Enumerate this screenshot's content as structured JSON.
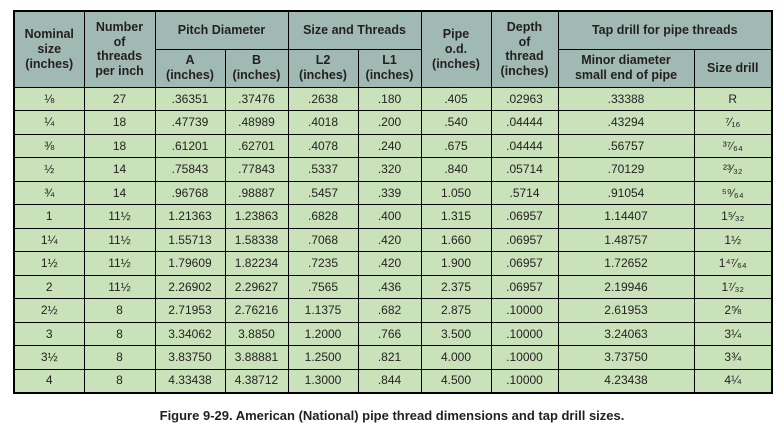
{
  "table": {
    "headers": {
      "nominal_size": "Nominal\nsize\n(inches)",
      "threads_per_inch": "Number\nof\nthreads\nper inch",
      "pitch_diameter_group": "Pitch Diameter",
      "pitch_a": "A\n(inches)",
      "pitch_b": "B\n(inches)",
      "size_threads_group": "Size and Threads",
      "l2": "L2\n(inches)",
      "l1": "L1\n(inches)",
      "pipe_od": "Pipe\no.d.\n(inches)",
      "depth_of_thread": "Depth\nof\nthread\n(inches)",
      "tap_drill_group": "Tap drill for pipe threads",
      "minor_diameter": "Minor diameter\nsmall end of pipe",
      "size_drill": "Size drill"
    },
    "rows": [
      [
        "⅛",
        "27",
        ".36351",
        ".37476",
        ".2638",
        ".180",
        ".405",
        ".02963",
        ".33388",
        "R"
      ],
      [
        "¼",
        "18",
        ".47739",
        ".48989",
        ".4018",
        ".200",
        ".540",
        ".04444",
        ".43294",
        "⁷⁄₁₆"
      ],
      [
        "⅜",
        "18",
        ".61201",
        ".62701",
        ".4078",
        ".240",
        ".675",
        ".04444",
        ".56757",
        "³⁷⁄₆₄"
      ],
      [
        "½",
        "14",
        ".75843",
        ".77843",
        ".5337",
        ".320",
        ".840",
        ".05714",
        ".70129",
        "²³⁄₃₂"
      ],
      [
        "¾",
        "14",
        ".96768",
        ".98887",
        ".5457",
        ".339",
        "1.050",
        ".5714",
        ".91054",
        "⁵⁹⁄₆₄"
      ],
      [
        "1",
        "11½",
        "1.21363",
        "1.23863",
        ".6828",
        ".400",
        "1.315",
        ".06957",
        "1.14407",
        "1⁵⁄₃₂"
      ],
      [
        "1¼",
        "11½",
        "1.55713",
        "1.58338",
        ".7068",
        ".420",
        "1.660",
        ".06957",
        "1.48757",
        "1½"
      ],
      [
        "1½",
        "11½",
        "1.79609",
        "1.82234",
        ".7235",
        ".420",
        "1.900",
        ".06957",
        "1.72652",
        "1⁴⁷⁄₆₄"
      ],
      [
        "2",
        "11½",
        "2.26902",
        "2.29627",
        ".7565",
        ".436",
        "2.375",
        ".06957",
        "2.19946",
        "1⁷⁄₃₂"
      ],
      [
        "2½",
        "8",
        "2.71953",
        "2.76216",
        "1.1375",
        ".682",
        "2.875",
        ".10000",
        "2.61953",
        "2⅝"
      ],
      [
        "3",
        "8",
        "3.34062",
        "3.8850",
        "1.2000",
        ".766",
        "3.500",
        ".10000",
        "3.24063",
        "3¼"
      ],
      [
        "3½",
        "8",
        "3.83750",
        "3.88881",
        "1.2500",
        ".821",
        "4.000",
        ".10000",
        "3.73750",
        "3¾"
      ],
      [
        "4",
        "8",
        "4.33438",
        "4.38712",
        "1.3000",
        ".844",
        "4.500",
        ".10000",
        "4.23438",
        "4¼"
      ]
    ]
  },
  "caption": "Figure 9-29. American (National) pipe thread dimensions and tap drill sizes.",
  "colors": {
    "header_bg": "#a0bab3",
    "row_bg": "#c9e2ba",
    "border": "#000000",
    "text": "#231f20"
  }
}
